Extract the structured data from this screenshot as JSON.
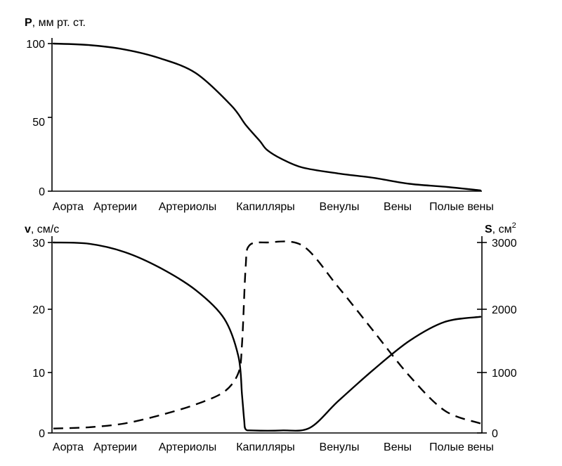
{
  "chart_data": [
    {
      "type": "line",
      "ylabel_symbol": "P",
      "ylabel_unit": ", мм рт. ст.",
      "categories": [
        "Аорта",
        "Артерии",
        "Артериолы",
        "Капилляры",
        "Венулы",
        "Вены",
        "Полые вены"
      ],
      "yticks": [
        "100",
        "50",
        "0"
      ],
      "ylim": [
        0,
        100
      ],
      "grid": false,
      "series": [
        {
          "style": "solid",
          "x": [
            0,
            0.5,
            1,
            1.5,
            2,
            2.5,
            2.7,
            2.9,
            3,
            3.2,
            3.5,
            4,
            4.5,
            5,
            5.5,
            6
          ],
          "y": [
            100,
            99,
            96,
            90,
            80,
            58,
            45,
            34,
            28,
            22,
            16,
            12,
            9,
            5,
            3,
            0.5
          ]
        }
      ]
    },
    {
      "type": "line",
      "ylabel_symbol": "v",
      "ylabel_unit": ", см/с",
      "y2label_symbol": "S",
      "y2label_unit": ", см",
      "y2label_sup": "2",
      "categories": [
        "Аорта",
        "Артерии",
        "Артериолы",
        "Капилляры",
        "Венулы",
        "Вены",
        "Полые вены"
      ],
      "yticks": [
        "30",
        "20",
        "10",
        "0"
      ],
      "y2ticks": [
        "3000",
        "2000",
        "1000",
        "0"
      ],
      "ylim": [
        0,
        30
      ],
      "y2lim": [
        0,
        3000
      ],
      "grid": false,
      "series": [
        {
          "style": "solid",
          "axis": "left",
          "x": [
            0,
            0.5,
            1,
            1.5,
            2,
            2.4,
            2.6,
            2.65,
            2.68,
            2.7,
            2.8,
            3.2,
            3.6,
            4,
            4.5,
            5,
            5.5,
            6
          ],
          "y": [
            30,
            29.8,
            28.5,
            26,
            22.5,
            18,
            12,
            6,
            2,
            0.6,
            0.4,
            0.4,
            0.8,
            5,
            10,
            14.5,
            17.5,
            18.3
          ]
        },
        {
          "style": "dashed",
          "axis": "right",
          "x": [
            0,
            0.5,
            1,
            1.5,
            2,
            2.4,
            2.6,
            2.65,
            2.7,
            2.75,
            3,
            3.5,
            4,
            4.5,
            5,
            5.5,
            6
          ],
          "y": [
            70,
            90,
            150,
            280,
            450,
            650,
            950,
            1400,
            2600,
            2950,
            3000,
            2950,
            2300,
            1600,
            900,
            350,
            150
          ]
        }
      ]
    }
  ]
}
